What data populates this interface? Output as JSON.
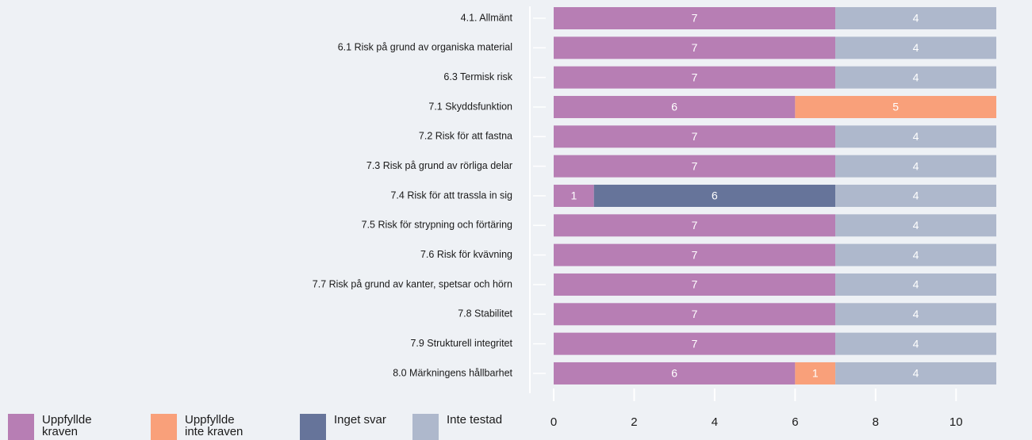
{
  "chart_data": {
    "type": "stacked-bar-horizontal",
    "categories": [
      "4.1. Allmänt",
      "6.1 Risk på grund av organiska material",
      "6.3 Termisk risk",
      "7.1 Skyddsfunktion",
      "7.2 Risk för att fastna",
      "7.3 Risk på grund av rörliga delar",
      "7.4 Risk för att trassla in sig",
      "7.5 Risk för strypning och förtäring",
      "7.6 Risk för kvävning",
      "7.7 Risk på grund av kanter, spetsar och hörn",
      "7.8 Stabilitet",
      "7.9 Strukturell integritet",
      "8.0 Märkningens hållbarhet"
    ],
    "series": [
      {
        "name": "Uppfyllde kraven",
        "color": "#b77eb4",
        "values": [
          7,
          7,
          7,
          6,
          7,
          7,
          1,
          7,
          7,
          7,
          7,
          7,
          6
        ]
      },
      {
        "name": "Uppfyllde inte kraven",
        "color": "#f9a07a",
        "values": [
          null,
          null,
          null,
          5,
          null,
          null,
          null,
          null,
          null,
          null,
          null,
          null,
          1
        ]
      },
      {
        "name": "Inget svar",
        "color": "#66749a",
        "values": [
          null,
          null,
          null,
          null,
          null,
          null,
          6,
          null,
          null,
          null,
          null,
          null,
          null
        ]
      },
      {
        "name": "Inte testad",
        "color": "#aeb8cc",
        "values": [
          4,
          4,
          4,
          null,
          4,
          4,
          4,
          4,
          4,
          4,
          4,
          4,
          4
        ]
      }
    ],
    "xlim": [
      0,
      11
    ],
    "xticks": [
      0,
      2,
      4,
      6,
      8,
      10
    ]
  }
}
